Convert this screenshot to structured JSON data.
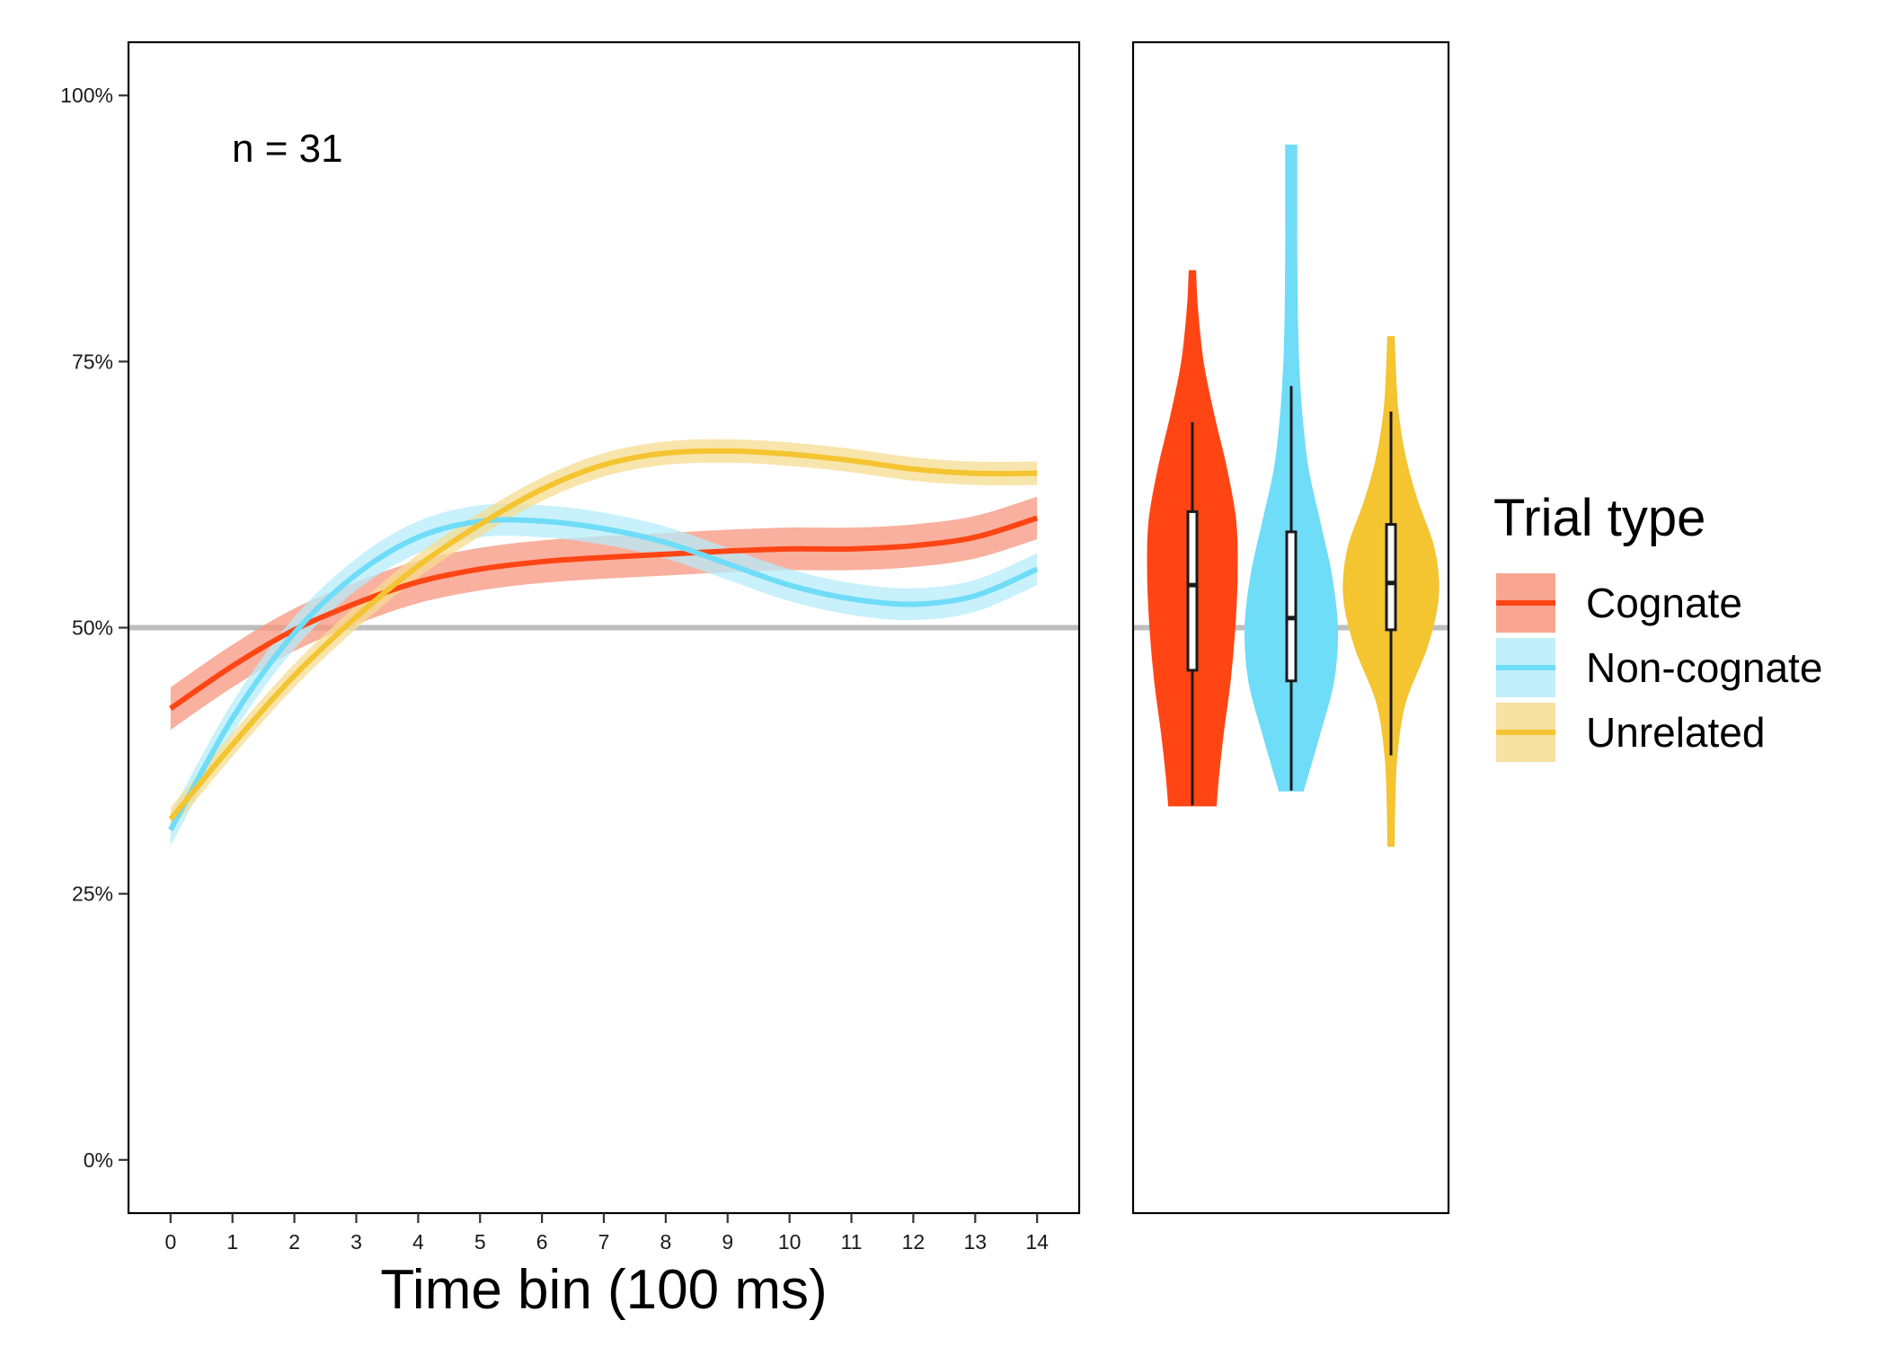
{
  "chart_data": [
    {
      "type": "line",
      "annotation": "n = 31",
      "xlabel": "Time bin (100 ms)",
      "ylabel": "",
      "x": [
        0,
        1,
        2,
        3,
        4,
        5,
        6,
        7,
        8,
        9,
        10,
        11,
        12,
        13,
        14
      ],
      "x_ticks": [
        "0",
        "1",
        "2",
        "3",
        "4",
        "5",
        "6",
        "7",
        "8",
        "9",
        "10",
        "11",
        "12",
        "13",
        "14"
      ],
      "ylim": [
        -0.05,
        1.05
      ],
      "y_ticks": [
        0,
        0.25,
        0.5,
        0.75,
        1.0
      ],
      "y_tick_labels": [
        "0%",
        "25%",
        "50%",
        "75%",
        "100%"
      ],
      "reference_line": 0.5,
      "grid": false,
      "series": [
        {
          "name": "Cognate",
          "color": "#ff4514",
          "ribbon_color": "#f7957e",
          "values": [
            0.424,
            0.464,
            0.498,
            0.523,
            0.543,
            0.555,
            0.562,
            0.566,
            0.569,
            0.572,
            0.574,
            0.574,
            0.577,
            0.585,
            0.603
          ],
          "ribbon_halfwidth": 0.02
        },
        {
          "name": "Non-cognate",
          "color": "#6fdcf8",
          "ribbon_color": "#b5ecfa",
          "values": [
            0.31,
            0.415,
            0.495,
            0.55,
            0.585,
            0.6,
            0.6,
            0.593,
            0.58,
            0.56,
            0.54,
            0.527,
            0.522,
            0.53,
            0.555
          ],
          "ribbon_halfwidth": 0.015
        },
        {
          "name": "Unrelated",
          "color": "#f4c431",
          "ribbon_color": "#f6dc8f",
          "values": [
            0.32,
            0.39,
            0.455,
            0.51,
            0.558,
            0.597,
            0.63,
            0.653,
            0.664,
            0.666,
            0.663,
            0.657,
            0.649,
            0.645,
            0.645
          ],
          "ribbon_halfwidth": 0.011
        }
      ]
    },
    {
      "type": "violin",
      "ylim": [
        -0.05,
        1.05
      ],
      "reference_line": 0.5,
      "categories": [
        "Cognate",
        "Non-cognate",
        "Unrelated"
      ],
      "series": [
        {
          "name": "Cognate",
          "color": "#ff4514",
          "min": 0.333,
          "max": 0.835,
          "whisker_low": 0.333,
          "whisker_high": 0.693,
          "q1": 0.46,
          "median": 0.54,
          "q3": 0.609,
          "density": [
            [
              0.333,
              0.5
            ],
            [
              0.36,
              0.55
            ],
            [
              0.4,
              0.65
            ],
            [
              0.45,
              0.8
            ],
            [
              0.5,
              0.9
            ],
            [
              0.55,
              0.95
            ],
            [
              0.6,
              0.92
            ],
            [
              0.65,
              0.72
            ],
            [
              0.7,
              0.45
            ],
            [
              0.75,
              0.22
            ],
            [
              0.8,
              0.1
            ],
            [
              0.835,
              0.06
            ]
          ]
        },
        {
          "name": "Non-cognate",
          "color": "#6fdcf8",
          "min": 0.347,
          "max": 0.953,
          "whisker_low": 0.347,
          "whisker_high": 0.727,
          "q1": 0.45,
          "median": 0.509,
          "q3": 0.59,
          "density": [
            [
              0.347,
              0.25
            ],
            [
              0.4,
              0.6
            ],
            [
              0.45,
              0.9
            ],
            [
              0.5,
              0.98
            ],
            [
              0.55,
              0.85
            ],
            [
              0.6,
              0.6
            ],
            [
              0.65,
              0.35
            ],
            [
              0.7,
              0.22
            ],
            [
              0.75,
              0.15
            ],
            [
              0.8,
              0.12
            ],
            [
              0.85,
              0.11
            ],
            [
              0.9,
              0.11
            ],
            [
              0.953,
              0.11
            ]
          ]
        },
        {
          "name": "Unrelated",
          "color": "#f4c431",
          "min": 0.295,
          "max": 0.773,
          "whisker_low": 0.38,
          "whisker_high": 0.703,
          "q1": 0.498,
          "median": 0.542,
          "q3": 0.597,
          "density": [
            [
              0.295,
              0.06
            ],
            [
              0.33,
              0.07
            ],
            [
              0.38,
              0.12
            ],
            [
              0.43,
              0.3
            ],
            [
              0.48,
              0.75
            ],
            [
              0.52,
              0.98
            ],
            [
              0.55,
              1.0
            ],
            [
              0.58,
              0.88
            ],
            [
              0.62,
              0.55
            ],
            [
              0.66,
              0.3
            ],
            [
              0.7,
              0.15
            ],
            [
              0.73,
              0.1
            ],
            [
              0.773,
              0.06
            ]
          ]
        }
      ]
    }
  ],
  "legend": {
    "title": "Trial type",
    "items": [
      {
        "label": "Cognate",
        "color": "#ff4514",
        "ribbon_color": "#f7957e"
      },
      {
        "label": "Non-cognate",
        "color": "#6fdcf8",
        "ribbon_color": "#b5ecfa"
      },
      {
        "label": "Unrelated",
        "color": "#f4c431",
        "ribbon_color": "#f6dc8f"
      }
    ]
  }
}
